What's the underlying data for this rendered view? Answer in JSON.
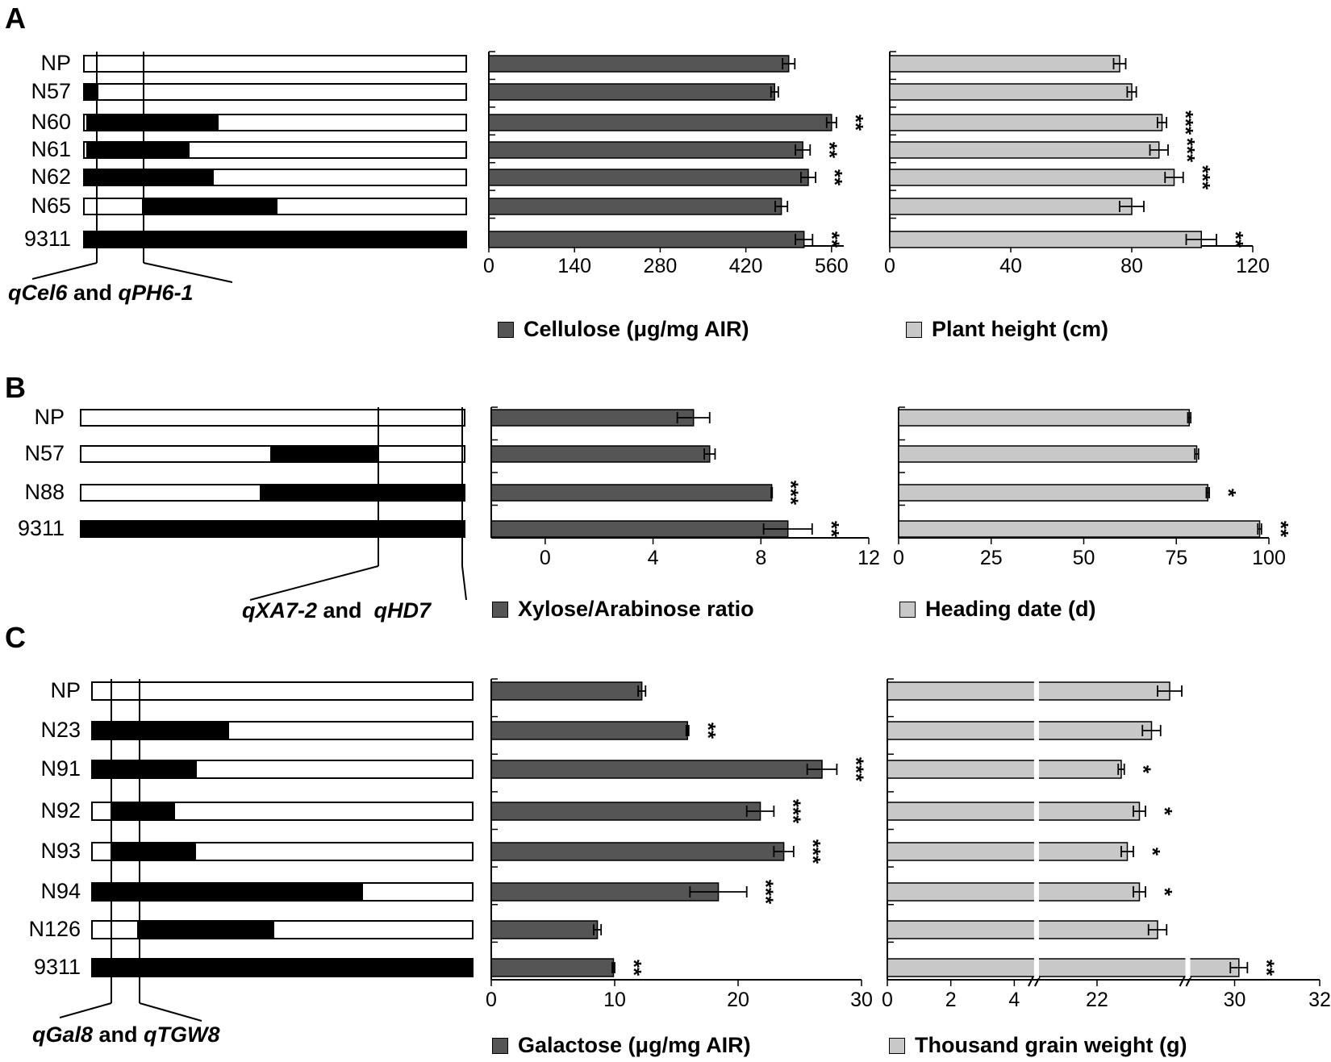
{
  "colors": {
    "dark_bar": "#555555",
    "light_bar": "#c8c8c8",
    "segment_fill": "#000000",
    "segment_empty": "#ffffff"
  },
  "panels": [
    {
      "label": "A",
      "genotypes": [
        "NP",
        "N57",
        "N60",
        "N61",
        "N62",
        "N65",
        "9311"
      ],
      "qtl_label": {
        "name1": "qCel6",
        "conj": " and ",
        "name2": "qPH6-1"
      },
      "left_legend": "Cellulose (μg/mg AIR)",
      "right_legend": "Plant height (cm)"
    },
    {
      "label": "B",
      "genotypes": [
        "NP",
        "N57",
        "N88",
        "9311"
      ],
      "qtl_label": {
        "name1": "qXA7-2",
        "conj": " and  ",
        "name2": "qHD7"
      },
      "left_legend": "Xylose/Arabinose ratio",
      "right_legend": "Heading date (d)"
    },
    {
      "label": "C",
      "genotypes": [
        "NP",
        "N23",
        "N91",
        "N92",
        "N93",
        "N94",
        "N126",
        "9311"
      ],
      "qtl_label": {
        "name1": "qGal8",
        "conj": " and ",
        "name2": "qTGW8"
      },
      "left_legend": "Galactose (μg/mg AIR)",
      "right_legend": "Thousand grain weight (g)"
    }
  ],
  "chart_data": [
    {
      "type": "bar",
      "orientation": "horizontal",
      "panel": "A",
      "title": "Cellulose (μg/mg AIR)",
      "categories": [
        "NP",
        "N57",
        "N60",
        "N61",
        "N62",
        "N65",
        "9311"
      ],
      "values": [
        490,
        467,
        560,
        513,
        522,
        478,
        515
      ],
      "errors": [
        10,
        6,
        8,
        12,
        12,
        10,
        14
      ],
      "significance": [
        "",
        "",
        "**",
        "**",
        "**",
        "",
        "**"
      ],
      "xlim": [
        0,
        580
      ],
      "ticks": [
        0,
        140,
        280,
        420,
        560
      ],
      "tick_labels": [
        "0",
        "140",
        "280",
        "420",
        "560"
      ]
    },
    {
      "type": "bar",
      "orientation": "horizontal",
      "panel": "A",
      "title": "Plant height (cm)",
      "categories": [
        "NP",
        "N57",
        "N60",
        "N61",
        "N62",
        "N65",
        "9311"
      ],
      "values": [
        76,
        80,
        90,
        89,
        94,
        80,
        103
      ],
      "errors": [
        2,
        1.5,
        1.5,
        3,
        3,
        4,
        5
      ],
      "significance": [
        "",
        "",
        "***",
        "***",
        "***",
        "",
        "**"
      ],
      "xlim": [
        0,
        120
      ],
      "ticks": [
        0,
        40,
        80,
        120
      ],
      "tick_labels": [
        "0",
        "40",
        "80",
        "120"
      ]
    },
    {
      "type": "bar",
      "orientation": "horizontal",
      "panel": "B",
      "title": "Xylose/Arabinose ratio",
      "categories": [
        "NP",
        "N57",
        "N88",
        "9311"
      ],
      "values": [
        5.5,
        6.1,
        8.4,
        9.0
      ],
      "errors": [
        0.6,
        0.2,
        0,
        0.9
      ],
      "significance": [
        "",
        "",
        "***",
        "**"
      ],
      "xlim": [
        -2,
        12
      ],
      "ticks": [
        0,
        4,
        8,
        12
      ],
      "tick_labels": [
        "0",
        "4",
        "8",
        "12"
      ]
    },
    {
      "type": "bar",
      "orientation": "horizontal",
      "panel": "B",
      "title": "Heading date (d)",
      "categories": [
        "NP",
        "N57",
        "N88",
        "9311"
      ],
      "values": [
        78.5,
        80.5,
        83.5,
        97.5
      ],
      "errors": [
        0.4,
        0.5,
        0.4,
        0.5
      ],
      "significance": [
        "",
        "",
        "*",
        "**"
      ],
      "xlim": [
        0,
        100
      ],
      "ticks": [
        0,
        25,
        50,
        75,
        100
      ],
      "tick_labels": [
        "0",
        "25",
        "50",
        "75",
        "100"
      ]
    },
    {
      "type": "bar",
      "orientation": "horizontal",
      "panel": "C",
      "title": "Galactose (μg/mg AIR)",
      "categories": [
        "NP",
        "N23",
        "N91",
        "N92",
        "N93",
        "N94",
        "N126",
        "9311"
      ],
      "values": [
        12.2,
        15.9,
        26.8,
        21.8,
        23.7,
        18.4,
        8.6,
        9.9
      ],
      "errors": [
        0.3,
        0.1,
        1.2,
        1.1,
        0.8,
        2.3,
        0.3,
        0.1
      ],
      "significance": [
        "",
        "**",
        "***",
        "***",
        "***",
        "***",
        "",
        "**"
      ],
      "xlim": [
        0,
        30
      ],
      "ticks": [
        0,
        10,
        20,
        30
      ],
      "tick_labels": [
        "0",
        "10",
        "20",
        "30"
      ]
    },
    {
      "type": "bar",
      "orientation": "horizontal",
      "panel": "C",
      "title": "Thousand grain weight (g)",
      "categories": [
        "NP",
        "N23",
        "N91",
        "N92",
        "N93",
        "N94",
        "N126",
        "9311"
      ],
      "values": [
        23.2,
        22.9,
        22.4,
        22.7,
        22.5,
        22.7,
        23.0,
        30.1
      ],
      "errors": [
        0.2,
        0.15,
        0.05,
        0.1,
        0.1,
        0.1,
        0.15,
        0.2
      ],
      "significance": [
        "",
        "",
        "*",
        "*",
        "*",
        "*",
        "",
        "**"
      ],
      "axis_breaks": [
        [
          4.7,
          21
        ],
        [
          23.5,
          28.9
        ]
      ],
      "tick_labels": [
        "0",
        "2",
        "4",
        "22",
        "30",
        "32"
      ]
    }
  ]
}
